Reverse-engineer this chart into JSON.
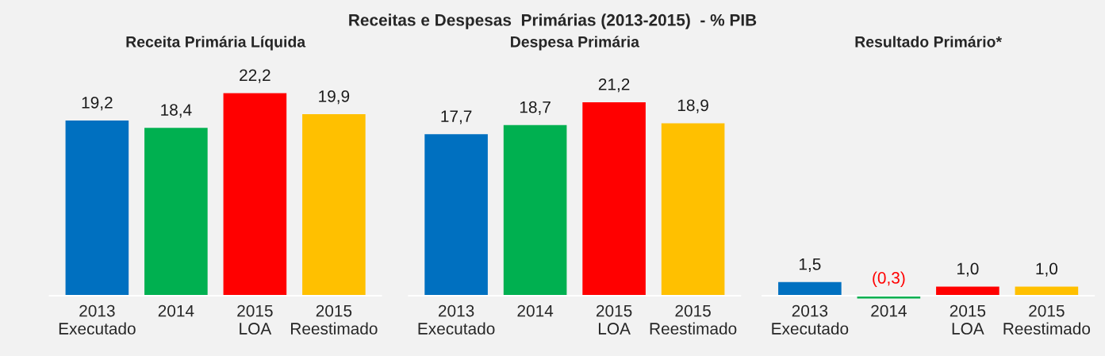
{
  "chart_data": [
    {
      "type": "other",
      "title": "Receitas e Despesas  Primárias (2013-2015)  - % PIB"
    },
    {
      "type": "bar",
      "subtitle": "Receita Primária Líquida",
      "categories": [
        "2013\nExecutado",
        "2014",
        "2015\nLOA",
        "2015\nReestimado"
      ],
      "values": [
        19.2,
        18.4,
        22.2,
        19.9
      ],
      "colors": [
        "#0070c0",
        "#00b050",
        "#ff0000",
        "#ffc000"
      ],
      "value_labels": [
        "19,2",
        "18,4",
        "22,2",
        "19,9"
      ],
      "tick_labels": "x",
      "grid": false,
      "legend": false
    },
    {
      "type": "bar",
      "subtitle": "Despesa Primária",
      "categories": [
        "2013\nExecutado",
        "2014",
        "2015\nLOA",
        "2015\nReestimado"
      ],
      "values": [
        17.7,
        18.7,
        21.2,
        18.9
      ],
      "colors": [
        "#0070c0",
        "#00b050",
        "#ff0000",
        "#ffc000"
      ],
      "value_labels": [
        "17,7",
        "18,7",
        "21,2",
        "18,9"
      ],
      "tick_labels": "x",
      "grid": false,
      "legend": false
    },
    {
      "type": "bar",
      "subtitle": "Resultado Primário*",
      "categories": [
        "2013\nExecutado",
        "2014",
        "2015\nLOA",
        "2015\nReestimado"
      ],
      "values": [
        1.5,
        -0.3,
        1.0,
        1.0
      ],
      "colors": [
        "#0070c0",
        "#00b050",
        "#ff0000",
        "#ffc000"
      ],
      "value_labels": [
        "1,5",
        "(0,3)",
        "1,0",
        "1,0"
      ],
      "tick_labels": "x",
      "grid": false,
      "legend": false
    }
  ]
}
